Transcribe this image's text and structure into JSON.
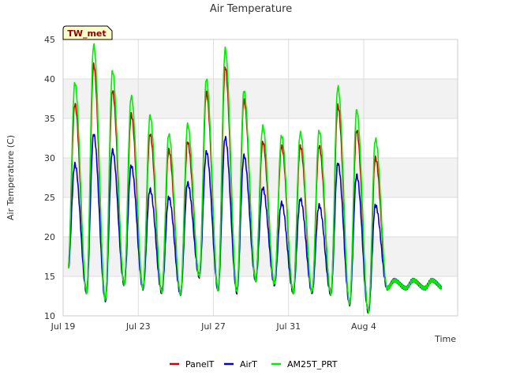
{
  "chart_data": {
    "type": "line",
    "title": "Air Temperature",
    "station_label": "TW_met",
    "xlabel": "Time",
    "ylabel": "Air Temperature (C)",
    "ylim": [
      10,
      45
    ],
    "yticks": [
      10,
      15,
      20,
      25,
      30,
      35,
      40,
      45
    ],
    "xlim": [
      "2023-07-19",
      "2023-08-09"
    ],
    "xticks": [
      {
        "date": "2023-07-19",
        "label": "Jul 19"
      },
      {
        "date": "2023-07-23",
        "label": "Jul 23"
      },
      {
        "date": "2023-07-27",
        "label": "Jul 27"
      },
      {
        "date": "2023-07-31",
        "label": "Jul 31"
      },
      {
        "date": "2023-08-04",
        "label": "Aug 4"
      }
    ],
    "grid": true,
    "legend_position": "bottom",
    "data_start": "2023-07-19T07:00",
    "data_end": "2023-08-08T03:00",
    "daily": [
      {
        "date": "2023-07-19",
        "min": 15.5,
        "panel_max": 36.8,
        "air_max": 29.2,
        "prt_max": 39.5
      },
      {
        "date": "2023-07-20",
        "min": 13.0,
        "panel_max": 41.8,
        "air_max": 33.0,
        "prt_max": 44.3
      },
      {
        "date": "2023-07-21",
        "min": 12.0,
        "panel_max": 38.5,
        "air_max": 31.0,
        "prt_max": 41.0
      },
      {
        "date": "2023-07-22",
        "min": 14.0,
        "panel_max": 35.5,
        "air_max": 29.0,
        "prt_max": 37.8
      },
      {
        "date": "2023-07-23",
        "min": 13.5,
        "panel_max": 33.0,
        "air_max": 26.0,
        "prt_max": 35.3
      },
      {
        "date": "2023-07-24",
        "min": 13.0,
        "panel_max": 31.0,
        "air_max": 25.0,
        "prt_max": 33.0
      },
      {
        "date": "2023-07-25",
        "min": 12.8,
        "panel_max": 32.0,
        "air_max": 26.8,
        "prt_max": 34.2
      },
      {
        "date": "2023-07-26",
        "min": 15.0,
        "panel_max": 38.3,
        "air_max": 30.8,
        "prt_max": 40.0
      },
      {
        "date": "2023-07-27",
        "min": 13.3,
        "panel_max": 41.5,
        "air_max": 32.6,
        "prt_max": 43.8
      },
      {
        "date": "2023-07-28",
        "min": 13.0,
        "panel_max": 37.3,
        "air_max": 30.3,
        "prt_max": 38.5
      },
      {
        "date": "2023-07-29",
        "min": 14.5,
        "panel_max": 32.0,
        "air_max": 26.2,
        "prt_max": 34.0
      },
      {
        "date": "2023-07-30",
        "min": 14.0,
        "panel_max": 31.5,
        "air_max": 24.3,
        "prt_max": 32.8
      },
      {
        "date": "2023-07-31",
        "min": 13.0,
        "panel_max": 31.5,
        "air_max": 24.8,
        "prt_max": 33.2
      },
      {
        "date": "2023-08-01",
        "min": 13.0,
        "panel_max": 31.5,
        "air_max": 24.0,
        "prt_max": 33.4
      },
      {
        "date": "2023-08-02",
        "min": 12.8,
        "panel_max": 36.6,
        "air_max": 29.3,
        "prt_max": 39.0
      },
      {
        "date": "2023-08-03",
        "min": 11.5,
        "panel_max": 33.5,
        "air_max": 27.8,
        "prt_max": 36.0
      },
      {
        "date": "2023-08-04",
        "min": 10.5,
        "panel_max": 30.0,
        "air_max": 24.0,
        "prt_max": 32.4
      },
      {
        "date": "2023-08-05",
        "min": 13.5,
        "panel_max": null,
        "air_max": null,
        "prt_max": null
      }
    ],
    "series": [
      {
        "name": "PanelT",
        "color": "#cc0000",
        "key": "panel_max"
      },
      {
        "name": "AirT",
        "color": "#0000cc",
        "key": "air_max"
      },
      {
        "name": "AM25T_PRT",
        "color": "#00ee00",
        "key": "prt_max"
      }
    ]
  }
}
